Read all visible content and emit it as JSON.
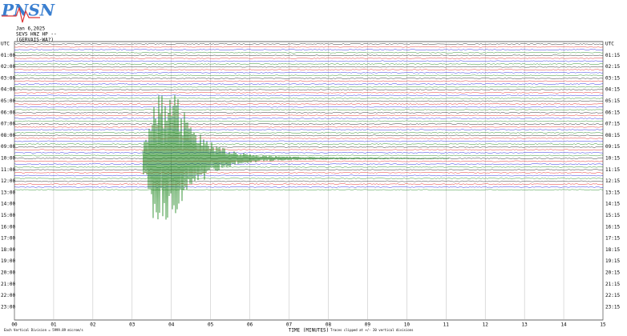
{
  "logo": "PNSN",
  "header": {
    "date": "Jan 6,2025",
    "station": "SEVS HNZ HP --",
    "location": "(GERVAIS-WA?)"
  },
  "left_axis": {
    "title": "UTC",
    "labels": [
      "01:00",
      "02:00",
      "03:00",
      "04:00",
      "05:00",
      "06:00",
      "07:00",
      "08:00",
      "09:00",
      "10:00",
      "11:00",
      "12:00",
      "13:00",
      "14:00",
      "15:00",
      "16:00",
      "17:00",
      "18:00",
      "19:00",
      "20:00",
      "21:00",
      "22:00",
      "23:00"
    ]
  },
  "right_axis": {
    "title": "UTC",
    "labels": [
      "01:15",
      "02:15",
      "03:15",
      "04:15",
      "05:15",
      "06:15",
      "07:15",
      "08:15",
      "09:15",
      "10:15",
      "11:15",
      "12:15",
      "13:15",
      "14:15",
      "15:15",
      "16:15",
      "17:15",
      "18:15",
      "19:15",
      "20:15",
      "21:15",
      "22:15",
      "23:15"
    ]
  },
  "x_axis": {
    "title": "TIME (MINUTES)",
    "labels": [
      "00",
      "01",
      "02",
      "03",
      "04",
      "05",
      "06",
      "07",
      "08",
      "09",
      "10",
      "11",
      "12",
      "13",
      "14",
      "15"
    ]
  },
  "footer": {
    "scale": "Each Vertical Division = 5999.89 microm/s",
    "note": "Traces clipped at +/- 20 vertical divisions"
  }
}
